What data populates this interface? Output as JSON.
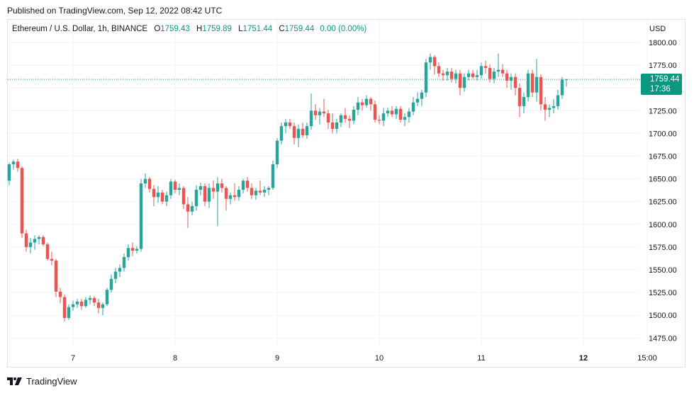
{
  "header": {
    "published": "Published on TradingView.com, Sep 12, 2022 08:42 UTC"
  },
  "legend": {
    "title": "Ethereum / U.S. Dollar, 1h, BINANCE",
    "open_label": "O",
    "open": "1759.43",
    "high_label": "H",
    "high": "1759.89",
    "low_label": "L",
    "low": "1751.44",
    "close_label": "C",
    "close": "1759.44",
    "change": "0.00 (0.00%)"
  },
  "currency": "USD",
  "last_price": {
    "price": "1759.44",
    "countdown": "17:36"
  },
  "footer": {
    "brand": "TradingView",
    "logo_icon": "tradingview-logo-icon"
  },
  "colors": {
    "up": "#26a69a",
    "down": "#ef5350",
    "tag": "#089981",
    "grid": "#f0f3fa"
  },
  "chart_data": {
    "type": "candlestick",
    "interval": "1h",
    "ylim": [
      1460,
      1810
    ],
    "yticks": [
      1475,
      1500,
      1525,
      1550,
      1575,
      1600,
      1625,
      1650,
      1675,
      1700,
      1725,
      1750,
      1775,
      1800
    ],
    "x_ticks": [
      {
        "label": "7",
        "index": 15
      },
      {
        "label": "8",
        "index": 39
      },
      {
        "label": "9",
        "index": 63
      },
      {
        "label": "10",
        "index": 87
      },
      {
        "label": "11",
        "index": 111
      },
      {
        "label": "12",
        "index": 135
      },
      {
        "label": "15:00",
        "index": 150
      }
    ],
    "last_price": 1759.44,
    "grid": true,
    "candles": [
      [
        1648,
        1668,
        1643,
        1666
      ],
      [
        1666,
        1671,
        1660,
        1669
      ],
      [
        1669,
        1672,
        1658,
        1662
      ],
      [
        1662,
        1664,
        1585,
        1590
      ],
      [
        1590,
        1594,
        1570,
        1575
      ],
      [
        1575,
        1585,
        1568,
        1580
      ],
      [
        1580,
        1588,
        1572,
        1584
      ],
      [
        1584,
        1588,
        1578,
        1586
      ],
      [
        1586,
        1588,
        1576,
        1578
      ],
      [
        1578,
        1580,
        1560,
        1562
      ],
      [
        1562,
        1570,
        1555,
        1560
      ],
      [
        1560,
        1562,
        1520,
        1526
      ],
      [
        1526,
        1530,
        1513,
        1520
      ],
      [
        1520,
        1523,
        1493,
        1497
      ],
      [
        1497,
        1512,
        1495,
        1509
      ],
      [
        1509,
        1516,
        1505,
        1512
      ],
      [
        1512,
        1518,
        1508,
        1515
      ],
      [
        1515,
        1518,
        1506,
        1510
      ],
      [
        1510,
        1520,
        1508,
        1517
      ],
      [
        1517,
        1522,
        1512,
        1519
      ],
      [
        1519,
        1521,
        1510,
        1514
      ],
      [
        1514,
        1518,
        1502,
        1508
      ],
      [
        1508,
        1514,
        1500,
        1512
      ],
      [
        1512,
        1530,
        1510,
        1528
      ],
      [
        1528,
        1545,
        1525,
        1540
      ],
      [
        1540,
        1552,
        1535,
        1548
      ],
      [
        1548,
        1556,
        1542,
        1552
      ],
      [
        1552,
        1568,
        1548,
        1564
      ],
      [
        1564,
        1578,
        1560,
        1574
      ],
      [
        1574,
        1580,
        1565,
        1571
      ],
      [
        1571,
        1576,
        1568,
        1573
      ],
      [
        1573,
        1650,
        1570,
        1645
      ],
      [
        1645,
        1656,
        1640,
        1650
      ],
      [
        1650,
        1652,
        1635,
        1639
      ],
      [
        1639,
        1643,
        1620,
        1630
      ],
      [
        1630,
        1642,
        1624,
        1635
      ],
      [
        1635,
        1638,
        1622,
        1625
      ],
      [
        1625,
        1636,
        1620,
        1632
      ],
      [
        1632,
        1650,
        1628,
        1647
      ],
      [
        1647,
        1649,
        1634,
        1638
      ],
      [
        1638,
        1645,
        1632,
        1640
      ],
      [
        1640,
        1642,
        1617,
        1622
      ],
      [
        1622,
        1630,
        1596,
        1614
      ],
      [
        1614,
        1625,
        1610,
        1620
      ],
      [
        1620,
        1643,
        1615,
        1638
      ],
      [
        1638,
        1646,
        1632,
        1642
      ],
      [
        1642,
        1645,
        1620,
        1625
      ],
      [
        1625,
        1645,
        1618,
        1640
      ],
      [
        1640,
        1648,
        1628,
        1636
      ],
      [
        1636,
        1652,
        1598,
        1645
      ],
      [
        1645,
        1650,
        1635,
        1640
      ],
      [
        1640,
        1642,
        1615,
        1628
      ],
      [
        1628,
        1635,
        1622,
        1632
      ],
      [
        1632,
        1645,
        1626,
        1630
      ],
      [
        1630,
        1642,
        1626,
        1638
      ],
      [
        1638,
        1650,
        1634,
        1648
      ],
      [
        1648,
        1652,
        1636,
        1640
      ],
      [
        1640,
        1645,
        1628,
        1632
      ],
      [
        1632,
        1640,
        1627,
        1637
      ],
      [
        1637,
        1648,
        1632,
        1635
      ],
      [
        1635,
        1642,
        1630,
        1638
      ],
      [
        1638,
        1642,
        1632,
        1640
      ],
      [
        1640,
        1670,
        1638,
        1666
      ],
      [
        1666,
        1695,
        1662,
        1692
      ],
      [
        1692,
        1712,
        1688,
        1708
      ],
      [
        1708,
        1716,
        1700,
        1712
      ],
      [
        1712,
        1716,
        1705,
        1708
      ],
      [
        1708,
        1712,
        1688,
        1695
      ],
      [
        1695,
        1710,
        1685,
        1705
      ],
      [
        1705,
        1712,
        1695,
        1698
      ],
      [
        1698,
        1712,
        1694,
        1708
      ],
      [
        1708,
        1744,
        1704,
        1725
      ],
      [
        1725,
        1732,
        1715,
        1720
      ],
      [
        1720,
        1728,
        1710,
        1724
      ],
      [
        1724,
        1738,
        1718,
        1722
      ],
      [
        1722,
        1726,
        1705,
        1712
      ],
      [
        1712,
        1722,
        1700,
        1705
      ],
      [
        1705,
        1716,
        1700,
        1712
      ],
      [
        1712,
        1722,
        1707,
        1720
      ],
      [
        1720,
        1728,
        1712,
        1716
      ],
      [
        1716,
        1720,
        1706,
        1714
      ],
      [
        1714,
        1730,
        1710,
        1726
      ],
      [
        1726,
        1740,
        1720,
        1734
      ],
      [
        1734,
        1738,
        1725,
        1731
      ],
      [
        1731,
        1742,
        1728,
        1738
      ],
      [
        1738,
        1740,
        1725,
        1732
      ],
      [
        1732,
        1736,
        1712,
        1715
      ],
      [
        1715,
        1720,
        1710,
        1714
      ],
      [
        1714,
        1728,
        1708,
        1722
      ],
      [
        1722,
        1728,
        1718,
        1725
      ],
      [
        1725,
        1730,
        1718,
        1721
      ],
      [
        1721,
        1730,
        1716,
        1727
      ],
      [
        1727,
        1730,
        1712,
        1715
      ],
      [
        1715,
        1722,
        1708,
        1718
      ],
      [
        1718,
        1728,
        1712,
        1724
      ],
      [
        1724,
        1740,
        1720,
        1734
      ],
      [
        1734,
        1745,
        1730,
        1738
      ],
      [
        1738,
        1748,
        1730,
        1745
      ],
      [
        1745,
        1782,
        1740,
        1778
      ],
      [
        1778,
        1788,
        1770,
        1784
      ],
      [
        1784,
        1786,
        1765,
        1774
      ],
      [
        1774,
        1778,
        1762,
        1766
      ],
      [
        1766,
        1770,
        1758,
        1764
      ],
      [
        1764,
        1772,
        1758,
        1768
      ],
      [
        1768,
        1772,
        1756,
        1760
      ],
      [
        1760,
        1770,
        1755,
        1766
      ],
      [
        1766,
        1770,
        1742,
        1750
      ],
      [
        1750,
        1766,
        1746,
        1762
      ],
      [
        1762,
        1770,
        1758,
        1766
      ],
      [
        1766,
        1770,
        1760,
        1762
      ],
      [
        1762,
        1770,
        1758,
        1764
      ],
      [
        1764,
        1778,
        1760,
        1774
      ],
      [
        1774,
        1780,
        1766,
        1772
      ],
      [
        1772,
        1776,
        1756,
        1760
      ],
      [
        1760,
        1772,
        1755,
        1768
      ],
      [
        1768,
        1788,
        1762,
        1770
      ],
      [
        1770,
        1776,
        1762,
        1766
      ],
      [
        1766,
        1770,
        1750,
        1758
      ],
      [
        1758,
        1766,
        1748,
        1762
      ],
      [
        1762,
        1766,
        1742,
        1750
      ],
      [
        1750,
        1755,
        1718,
        1730
      ],
      [
        1730,
        1745,
        1722,
        1740
      ],
      [
        1740,
        1770,
        1735,
        1766
      ],
      [
        1766,
        1770,
        1740,
        1745
      ],
      [
        1745,
        1782,
        1735,
        1762
      ],
      [
        1762,
        1765,
        1725,
        1732
      ],
      [
        1732,
        1740,
        1714,
        1726
      ],
      [
        1726,
        1732,
        1718,
        1728
      ],
      [
        1728,
        1738,
        1722,
        1730
      ],
      [
        1730,
        1748,
        1726,
        1742
      ],
      [
        1742,
        1762,
        1738,
        1759
      ],
      [
        1759.43,
        1759.89,
        1751.44,
        1759.44
      ]
    ]
  }
}
